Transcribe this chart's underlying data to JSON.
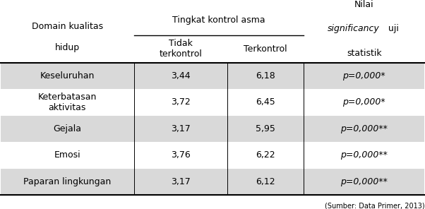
{
  "col1_header_line1": "Domain kualitas",
  "col1_header_line2": "hidup",
  "col2_group_header": "Tingkat kontrol asma",
  "col2a_header": "Tidak\nterkontrol",
  "col2b_header": "Terkontrol",
  "col3_header_nilai": "Nilai",
  "col3_header_sig": "significancy",
  "col3_header_uji": "  uji",
  "col3_header_stat": "statistik",
  "rows": [
    {
      "domain": "Keseluruhan",
      "tidak": "3,44",
      "terkontrol": "6,18",
      "nilai": "p=0,000*",
      "shaded": true
    },
    {
      "domain": "Keterbatasan\naktivitas",
      "tidak": "3,72",
      "terkontrol": "6,45",
      "nilai": "p=0,000*",
      "shaded": false
    },
    {
      "domain": "Gejala",
      "tidak": "3,17",
      "terkontrol": "5,95",
      "nilai": "p=0,000**",
      "shaded": true
    },
    {
      "domain": "Emosi",
      "tidak": "3,76",
      "terkontrol": "6,22",
      "nilai": "p=0,000**",
      "shaded": false
    },
    {
      "domain": "Paparan lingkungan",
      "tidak": "3,17",
      "terkontrol": "6,12",
      "nilai": "p=0,000**",
      "shaded": true
    }
  ],
  "shaded_color": "#d9d9d9",
  "white_color": "#ffffff",
  "bg_color": "#ffffff",
  "font_size": 9,
  "header_font_size": 9,
  "source_text": "(Sumber: Data Primer, 2013)"
}
